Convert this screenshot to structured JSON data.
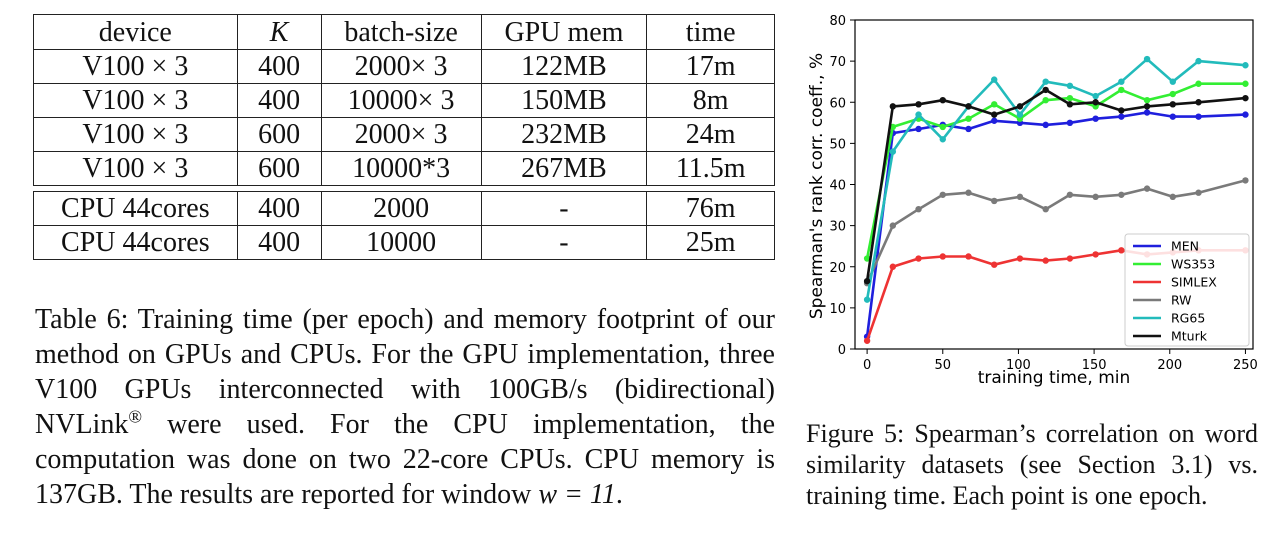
{
  "table": {
    "headers": [
      "device",
      "K",
      "batch-size",
      "GPU mem",
      "time"
    ],
    "gpu_rows": [
      [
        "V100 × 3",
        "400",
        "2000× 3",
        "122MB",
        "17m"
      ],
      [
        "V100 × 3",
        "400",
        "10000× 3",
        "150MB",
        "8m"
      ],
      [
        "V100 × 3",
        "600",
        "2000× 3",
        "232MB",
        "24m"
      ],
      [
        "V100 × 3",
        "600",
        "10000*3",
        "267MB",
        "11.5m"
      ]
    ],
    "cpu_rows": [
      [
        "CPU 44cores",
        "400",
        "2000",
        "-",
        "76m"
      ],
      [
        "CPU 44cores",
        "400",
        "10000",
        "-",
        "25m"
      ]
    ]
  },
  "table_caption": {
    "part1": "Table 6: Training time (per epoch) and memory footprint of our method on GPUs and CPUs. For the GPU implementation, three V100 GPUs interconnected with 100GB/s (bidirectional) NVLink",
    "registered": "®",
    "part2": " were used. For the CPU implementation, the computation was done on two 22-core CPUs. CPU memory is 137GB. The results are reported for window ",
    "math": "w = 11",
    "part3": "."
  },
  "figure_caption": "Figure 5: Spearman’s correlation on word similarity datasets (see Section 3.1) vs. training time. Each point is one epoch.",
  "chart_data": {
    "type": "line",
    "xlabel": "training time, min",
    "ylabel": "Spearman's rank corr. coeff., %",
    "xlim": [
      -8,
      255
    ],
    "ylim": [
      0,
      80
    ],
    "xticks": [
      0,
      50,
      100,
      150,
      200,
      250
    ],
    "yticks": [
      0,
      10,
      20,
      30,
      40,
      50,
      60,
      70,
      80
    ],
    "legend_position": "lower-right",
    "x": [
      0,
      17,
      34,
      50,
      67,
      84,
      101,
      118,
      134,
      151,
      168,
      185,
      202,
      219,
      250
    ],
    "series": [
      {
        "name": "MEN",
        "color": "#1f1fdd",
        "values": [
          3,
          52.5,
          53.5,
          54.5,
          53.5,
          55.5,
          55,
          54.5,
          55,
          56,
          56.5,
          57.5,
          56.5,
          56.5,
          57
        ]
      },
      {
        "name": "WS353",
        "color": "#33ee33",
        "values": [
          22,
          54,
          56,
          54,
          56,
          59.5,
          56,
          60.5,
          61,
          59,
          63,
          60.5,
          62,
          64.5,
          64.5
        ]
      },
      {
        "name": "SIMLEX",
        "color": "#ee3333",
        "values": [
          2,
          20,
          22,
          22.5,
          22.5,
          20.5,
          22,
          21.5,
          22,
          23,
          24,
          23,
          23.5,
          24,
          24
        ]
      },
      {
        "name": "RW",
        "color": "#7a7a7a",
        "values": [
          16,
          30,
          34,
          37.5,
          38,
          36,
          37,
          34,
          37.5,
          37,
          37.5,
          39,
          37,
          38,
          41
        ]
      },
      {
        "name": "RG65",
        "color": "#22bbbb",
        "values": [
          12,
          48,
          57,
          51,
          59,
          65.5,
          57,
          65,
          64,
          61.5,
          65,
          70.5,
          65,
          70,
          69
        ]
      },
      {
        "name": "Mturk",
        "color": "#111111",
        "values": [
          16.5,
          59,
          59.5,
          60.5,
          59,
          57,
          59,
          63,
          59.5,
          60,
          58,
          59,
          59.5,
          60,
          61
        ]
      }
    ]
  }
}
